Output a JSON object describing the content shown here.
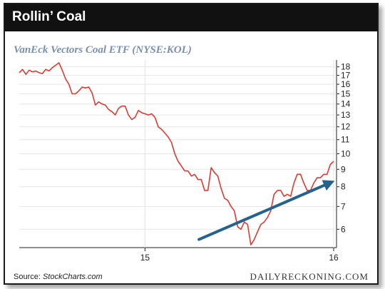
{
  "header": {
    "title": "Rollin’ Coal"
  },
  "footer": {
    "source_label": "Source: ",
    "source_name": "StockCharts.com",
    "brand": "DAILYRECKONING.COM"
  },
  "colors": {
    "line": "#e03a2f",
    "arrow": "#25628e",
    "title_bg": "#111111",
    "subtitle": "#7a8fad"
  },
  "chart_data": {
    "type": "line",
    "title": "VanEck Vectors Coal ETF (NYSE:KOL)",
    "y_scale": "log",
    "ylim": [
      5.3,
      18.5
    ],
    "y_ticks": [
      18,
      17,
      16,
      15,
      14,
      13,
      12,
      11,
      10,
      9,
      8,
      7,
      6
    ],
    "x_tick_labels": [
      {
        "label": "15",
        "index": 38
      },
      {
        "label": "16",
        "index": 95
      }
    ],
    "grid": true,
    "series": [
      {
        "values": [
          17.3,
          17.7,
          17.1,
          17.6,
          17.4,
          17.5,
          17.3,
          17.2,
          17.7,
          17.5,
          17.9,
          18.2,
          18.5,
          17.6,
          16.6,
          16.0,
          15.0,
          15.0,
          15.3,
          15.7,
          15.6,
          15.7,
          15.1,
          13.9,
          14.2,
          14.0,
          13.9,
          13.5,
          13.3,
          13.0,
          13.6,
          13.8,
          13.8,
          13.0,
          12.6,
          12.8,
          13.4,
          13.2,
          13.1,
          13.0,
          13.1,
          12.8,
          12.0,
          11.8,
          11.5,
          11.2,
          10.8,
          10.0,
          9.5,
          9.2,
          8.9,
          8.9,
          8.6,
          8.7,
          8.4,
          8.4,
          7.8,
          7.8,
          9.1,
          8.8,
          8.6,
          7.9,
          7.4,
          7.3,
          7.0,
          6.8,
          6.1,
          6.0,
          6.3,
          6.2,
          5.4,
          5.6,
          5.9,
          6.2,
          6.3,
          6.5,
          6.8,
          7.6,
          7.8,
          7.8,
          7.5,
          7.6,
          7.5,
          8.2,
          8.7,
          8.7,
          8.2,
          7.8,
          7.8,
          8.2,
          8.5,
          8.5,
          8.7,
          8.7,
          9.3,
          9.5
        ]
      }
    ],
    "annotation": {
      "type": "arrow",
      "from_index": 92,
      "from_value": 5.6,
      "to_index": 117,
      "to_value": 8.4
    }
  }
}
